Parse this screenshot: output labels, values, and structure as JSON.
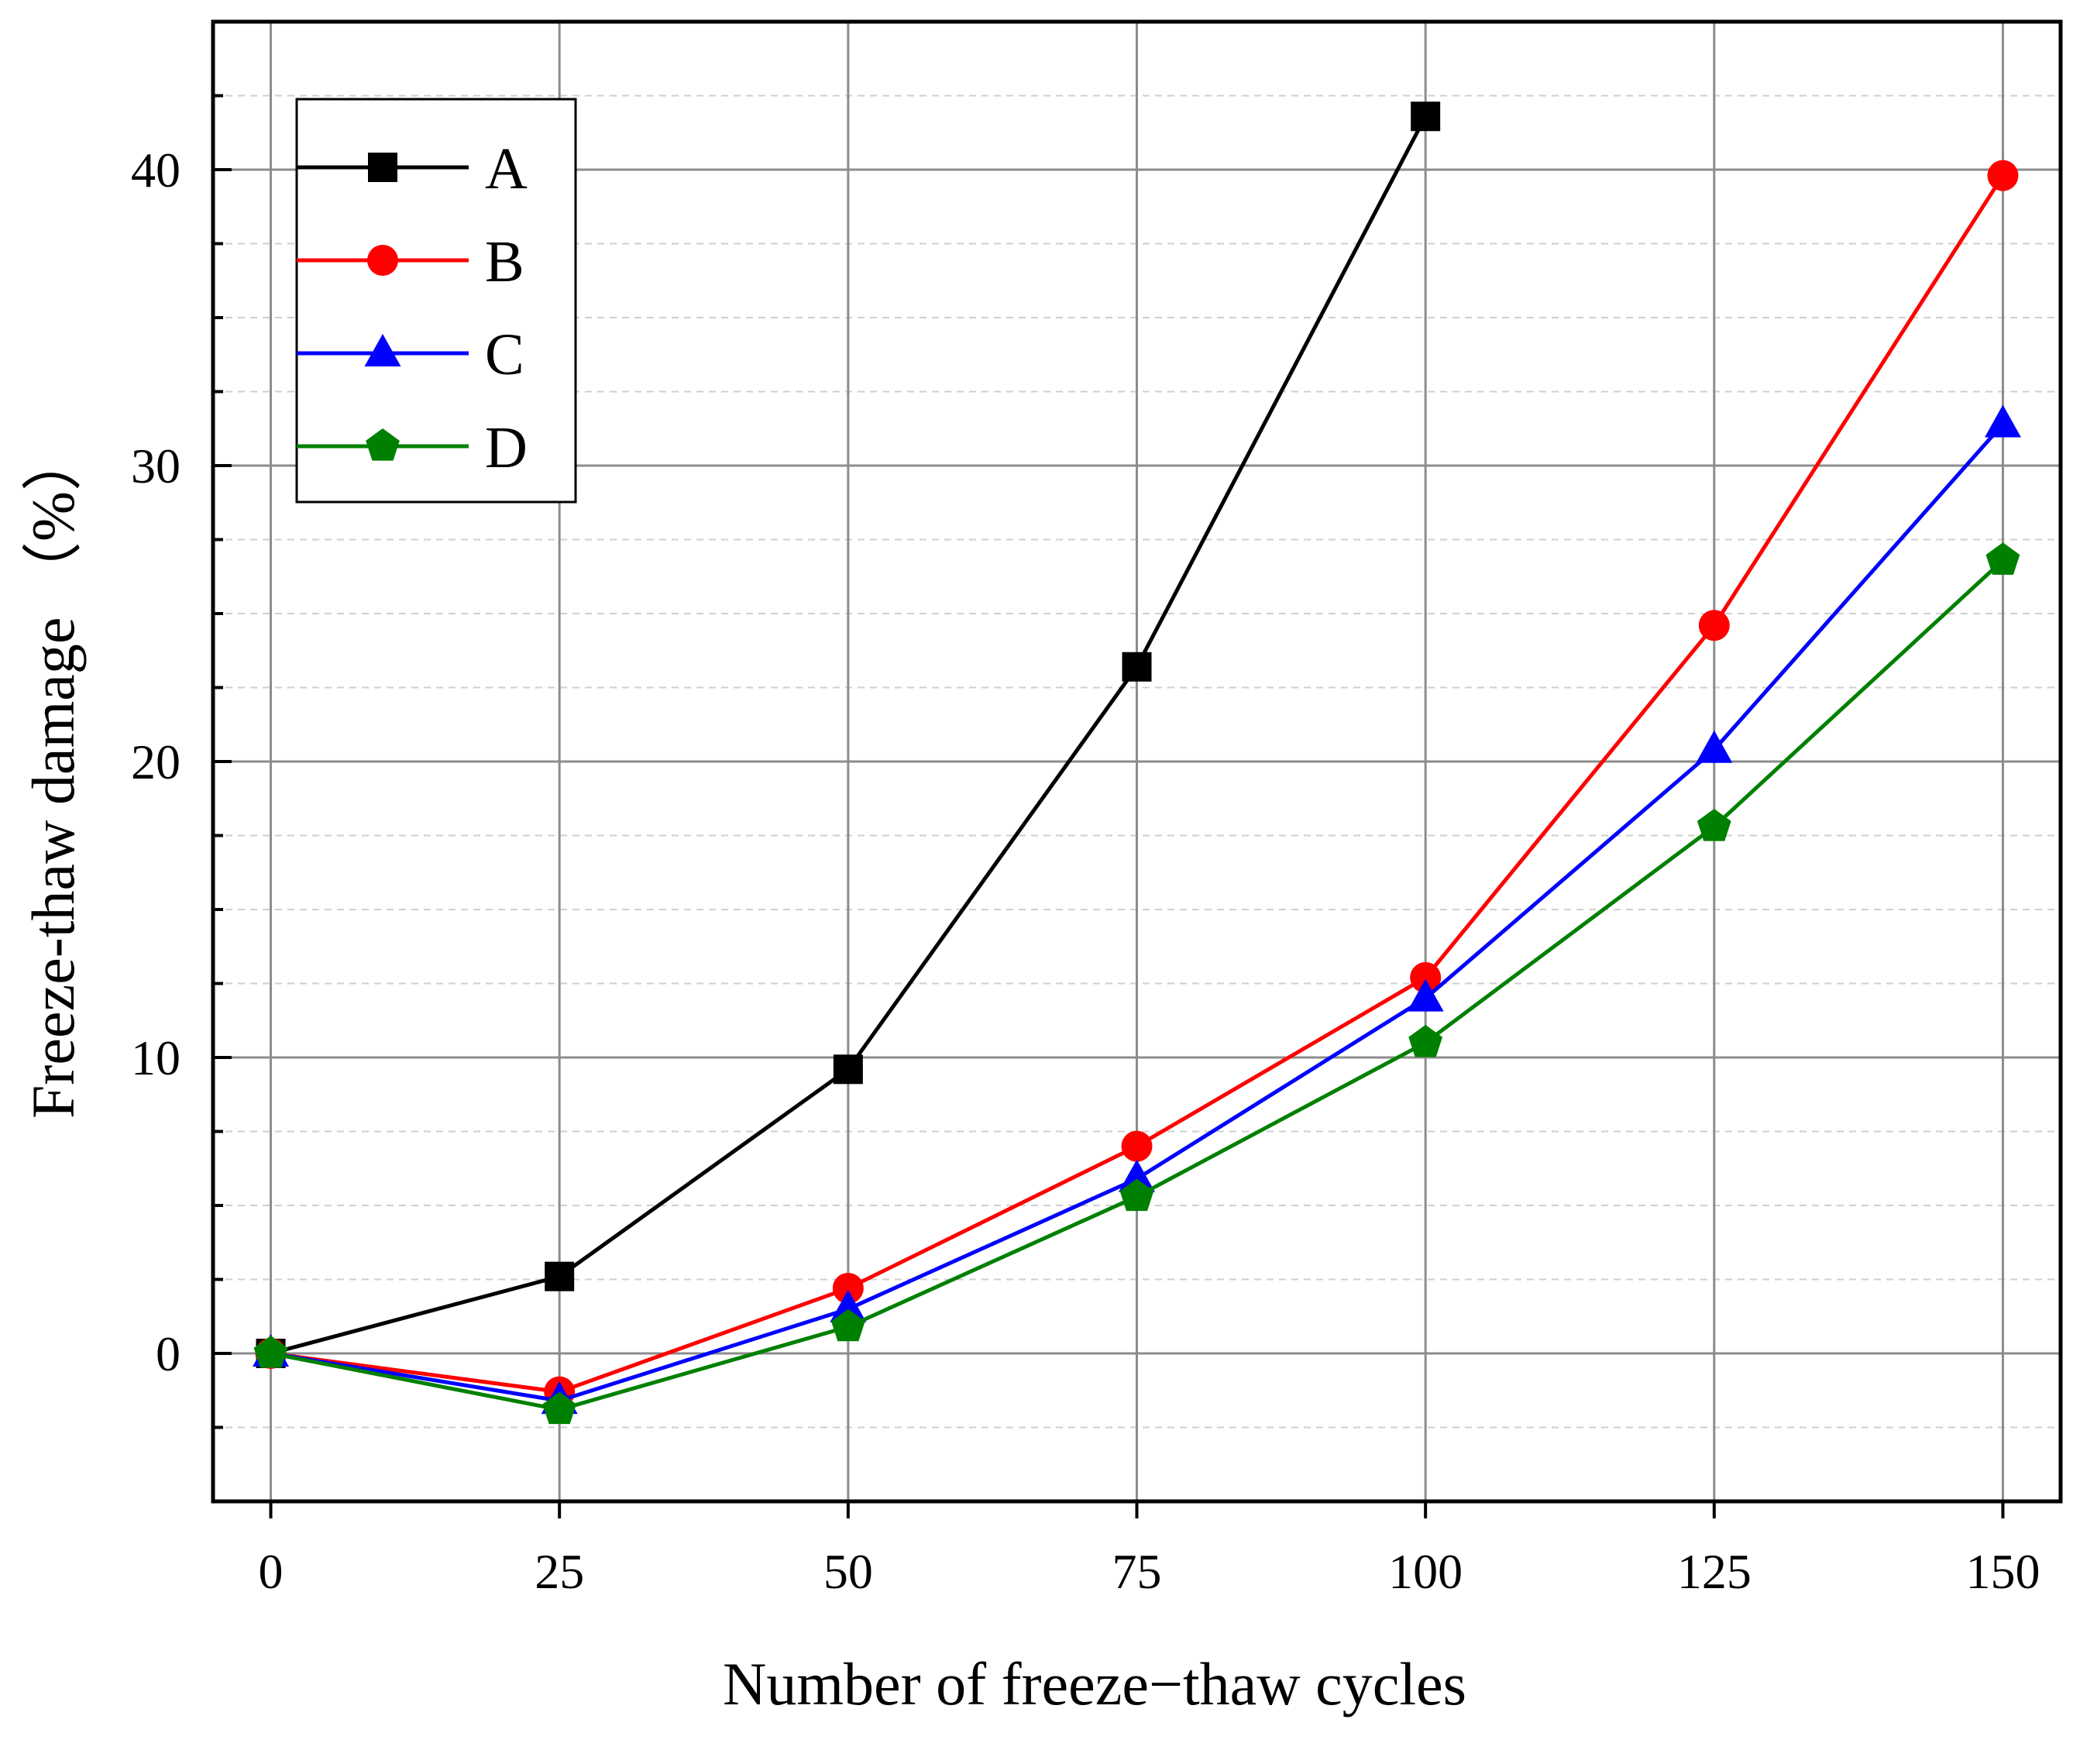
{
  "chart_data": {
    "type": "line",
    "title": "",
    "xlabel": "Number of freeze−thaw cycles",
    "ylabel": "Freeze-thaw damage （%）",
    "x": [
      0,
      25,
      50,
      75,
      100,
      125,
      150
    ],
    "xlim": [
      -5,
      155
    ],
    "ylim": [
      -5,
      45
    ],
    "xticks": [
      0,
      25,
      50,
      75,
      100,
      125,
      150
    ],
    "yticks": [
      0,
      10,
      20,
      30,
      40
    ],
    "y_minor_step": 2.5,
    "grid": true,
    "legend_position": "top-left",
    "series": [
      {
        "name": "A",
        "color": "#000000",
        "marker": "square",
        "values": [
          0,
          2.6,
          9.6,
          23.2,
          41.8,
          null,
          null
        ]
      },
      {
        "name": "B",
        "color": "#ff0000",
        "marker": "circle",
        "values": [
          0,
          -1.3,
          2.2,
          7.0,
          12.7,
          24.6,
          39.8
        ]
      },
      {
        "name": "C",
        "color": "#0000ff",
        "marker": "triangle",
        "values": [
          0,
          -1.6,
          1.5,
          5.9,
          12.0,
          20.4,
          31.4
        ]
      },
      {
        "name": "D",
        "color": "#008000",
        "marker": "pentagon",
        "values": [
          0,
          -1.9,
          0.9,
          5.3,
          10.5,
          17.8,
          26.8
        ]
      }
    ]
  }
}
